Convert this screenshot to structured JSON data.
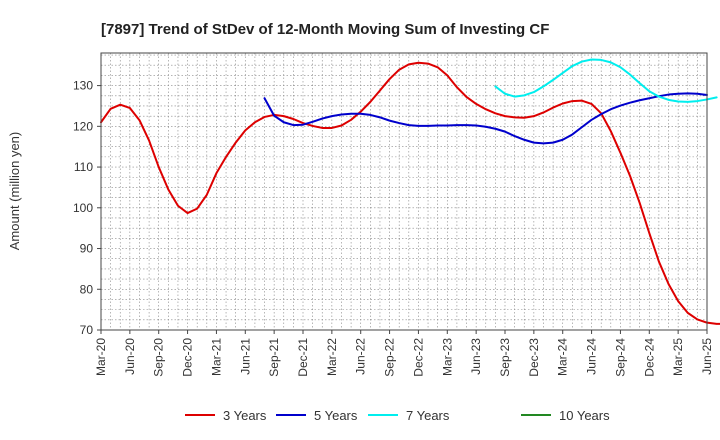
{
  "chart_data": {
    "type": "line",
    "title": "[7897]  Trend of StDev of 12-Month Moving Sum of Investing CF",
    "ylabel": "Amount (million yen)",
    "xlabel": "",
    "ylim": [
      70,
      138
    ],
    "yticks": [
      70,
      80,
      90,
      100,
      110,
      120,
      130
    ],
    "xlim": [
      "2020-03",
      "2025-06"
    ],
    "xticks": [
      "Mar-20",
      "Jun-20",
      "Sep-20",
      "Dec-20",
      "Mar-21",
      "Jun-21",
      "Sep-21",
      "Dec-21",
      "Mar-22",
      "Jun-22",
      "Sep-22",
      "Dec-22",
      "Mar-23",
      "Jun-23",
      "Sep-23",
      "Dec-23",
      "Mar-24",
      "Jun-24",
      "Sep-24",
      "Dec-24",
      "Mar-25",
      "Jun-25"
    ],
    "grid": true,
    "legend_position": "bottom",
    "series": [
      {
        "name": "3 Years",
        "color": "#dd0000",
        "start": "2020-03",
        "values": [
          121,
          124.3,
          125.3,
          124.5,
          121.5,
          116.5,
          110,
          104.5,
          100.5,
          98.7,
          99.8,
          103.2,
          108.5,
          112.5,
          116,
          119,
          121,
          122.3,
          122.8,
          122.5,
          121.8,
          120.8,
          120.1,
          119.6,
          119.6,
          120.2,
          121.6,
          123.6,
          126,
          128.8,
          131.6,
          133.9,
          135.2,
          135.6,
          135.4,
          134.5,
          132.5,
          129.6,
          127.2,
          125.5,
          124.2,
          123.2,
          122.5,
          122.2,
          122.1,
          122.5,
          123.4,
          124.6,
          125.6,
          126.2,
          126.3,
          125.5,
          123.2,
          118.8,
          113.5,
          107.8,
          101.2,
          93.8,
          86.8,
          81.3,
          77.1,
          74.2,
          72.6,
          71.8,
          71.5,
          71.5
        ],
        "point_count": 66
      },
      {
        "name": "5 Years",
        "color": "#0000cc",
        "start": "2021-08",
        "values": [
          126.9,
          122.6,
          121.0,
          120.3,
          120.4,
          121.1,
          121.9,
          122.5,
          122.9,
          123.1,
          123.1,
          122.8,
          122.2,
          121.4,
          120.8,
          120.3,
          120.1,
          120.1,
          120.2,
          120.2,
          120.3,
          120.3,
          120.2,
          119.9,
          119.4,
          118.7,
          117.6,
          116.7,
          116.0,
          115.8,
          116.0,
          116.7,
          118.0,
          119.8,
          121.6,
          123.0,
          124.2,
          125.1,
          125.8,
          126.4,
          126.9,
          127.4,
          127.8,
          128.0,
          128.1,
          128.0,
          127.7
        ],
        "point_count": 47
      },
      {
        "name": "7 Years",
        "color": "#00eeee",
        "start": "2023-08",
        "values": [
          129.8,
          128.0,
          127.3,
          127.6,
          128.4,
          129.8,
          131.4,
          133.1,
          134.8,
          135.9,
          136.4,
          136.3,
          135.7,
          134.5,
          132.7,
          130.6,
          128.6,
          127.3,
          126.5,
          126.1,
          126.0,
          126.2,
          126.6,
          127.1
        ],
        "point_count": 24
      },
      {
        "name": "10 Years",
        "color": "#228822",
        "start": "2020-03",
        "values": [],
        "point_count": 0
      }
    ]
  }
}
